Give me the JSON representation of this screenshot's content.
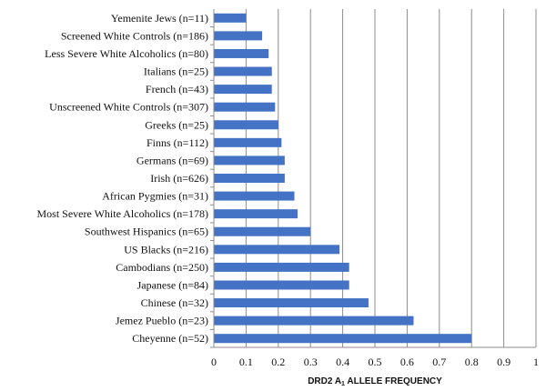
{
  "chart_data": {
    "type": "bar",
    "orientation": "horizontal",
    "categories": [
      "Yemenite Jews (n=11)",
      "Screened White Controls (n=186)",
      "Less Severe White Alcoholics (n=80)",
      "Italians (n=25)",
      "French (n=43)",
      "Unscreened White Controls (n=307)",
      "Greeks (n=25)",
      "Finns (n=112)",
      "Germans (n=69)",
      "Irish (n=626)",
      "African Pygmies (n=31)",
      "Most Severe White Alcoholics (n=178)",
      "Southwest Hispanics (n=65)",
      "US Blacks (n=216)",
      "Cambodians (n=250)",
      "Japanese (n=84)",
      "Chinese (n=32)",
      "Jemez Pueblo (n=23)",
      "Cheyenne (n=52)"
    ],
    "values": [
      0.1,
      0.15,
      0.17,
      0.18,
      0.18,
      0.19,
      0.2,
      0.21,
      0.22,
      0.22,
      0.25,
      0.26,
      0.3,
      0.39,
      0.42,
      0.42,
      0.48,
      0.62,
      0.8
    ],
    "xlabel": {
      "main": "DRD2 A",
      "sub": "1",
      "rest": " ALLELE FREQUENCY"
    },
    "ylabel": "",
    "xlim": [
      0,
      1
    ],
    "xticks": [
      "0",
      "0.1",
      "0.2",
      "0.3",
      "0.4",
      "0.5",
      "0.6",
      "0.7",
      "0.8",
      "0.9",
      "1"
    ],
    "grid": "vertical",
    "bar_color": "#4472C4"
  }
}
